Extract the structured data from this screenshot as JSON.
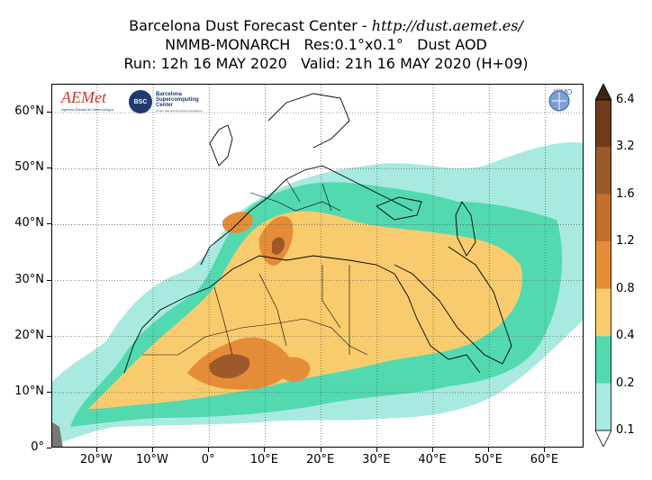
{
  "title": {
    "line1_prefix": "Barcelona Dust Forecast Center - ",
    "line1_url": "http://dust.aemet.es/",
    "line2": "NMMB-MONARCH   Res:0.1°x0.1°   Dust AOD",
    "line3": "Run: 12h 16 MAY 2020   Valid: 21h 16 MAY 2020 (H+09)"
  },
  "map": {
    "lon_range": [
      -28,
      67
    ],
    "lat_range": [
      0,
      65
    ],
    "lat_ticks": [
      {
        "value": 60,
        "label": "60°N"
      },
      {
        "value": 50,
        "label": "50°N"
      },
      {
        "value": 40,
        "label": "40°N"
      },
      {
        "value": 30,
        "label": "30°N"
      },
      {
        "value": 20,
        "label": "20°N"
      },
      {
        "value": 10,
        "label": "10°N"
      },
      {
        "value": 0,
        "label": "0°"
      }
    ],
    "lon_ticks": [
      {
        "value": -20,
        "label": "20°W"
      },
      {
        "value": -10,
        "label": "10°W"
      },
      {
        "value": 0,
        "label": "0°"
      },
      {
        "value": 10,
        "label": "10°E"
      },
      {
        "value": 20,
        "label": "20°E"
      },
      {
        "value": 30,
        "label": "30°E"
      },
      {
        "value": 40,
        "label": "40°E"
      },
      {
        "value": 50,
        "label": "50°E"
      },
      {
        "value": 60,
        "label": "60°E"
      }
    ]
  },
  "colorbar": {
    "levels": [
      "0.1",
      "0.2",
      "0.4",
      "0.8",
      "1.2",
      "1.6",
      "3.2",
      "6.4"
    ],
    "colors": [
      "#a8eadf",
      "#52d9b0",
      "#f8cc6e",
      "#e48c38",
      "#c66e2c",
      "#9c5a2a",
      "#6e3c1a"
    ],
    "under_color": "#ffffff",
    "over_color": "#3e2410"
  },
  "logos": {
    "aemet": "AEMet",
    "aemet_sub": "Agencia Estatal de Meteorología",
    "bsc": "BSC",
    "bsc_name": "Barcelona Supercomputing Center",
    "bsc_sub": "Centro Nacional de Supercomputación",
    "wmo": "WMO"
  }
}
